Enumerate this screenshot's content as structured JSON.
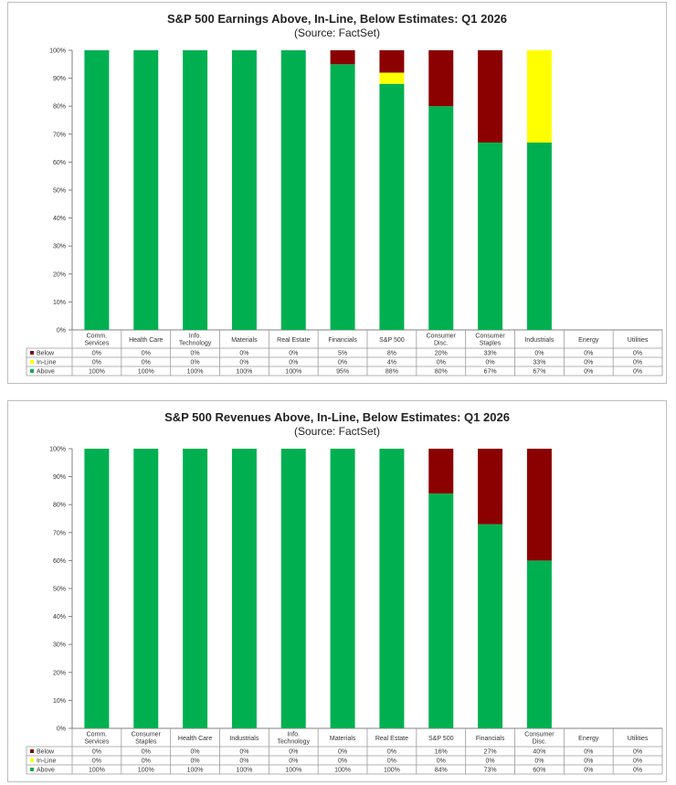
{
  "chart_data": [
    {
      "type": "bar",
      "stacked": true,
      "title": "S&P 500 Earnings Above, In-Line, Below Estimates: Q1 2026",
      "subtitle": "(Source: FactSet)",
      "categories": [
        [
          "Comm.",
          "Services"
        ],
        [
          "Health Care"
        ],
        [
          "Info.",
          "Technology"
        ],
        [
          "Materials"
        ],
        [
          "Real Estate"
        ],
        [
          "Financials"
        ],
        [
          "S&P 500"
        ],
        [
          "Consumer",
          "Disc."
        ],
        [
          "Consumer",
          "Staples"
        ],
        [
          "Industrials"
        ],
        [
          "Energy"
        ],
        [
          "Utilities"
        ]
      ],
      "series": [
        {
          "name": "Below",
          "color": "#8b0000",
          "values": [
            0,
            0,
            0,
            0,
            0,
            5,
            8,
            20,
            33,
            0,
            0,
            0
          ],
          "labels": [
            "0%",
            "0%",
            "0%",
            "0%",
            "0%",
            "5%",
            "8%",
            "20%",
            "33%",
            "0%",
            "0%",
            "0%"
          ]
        },
        {
          "name": "In-Line",
          "color": "#ffff00",
          "values": [
            0,
            0,
            0,
            0,
            0,
            0,
            4,
            0,
            0,
            33,
            0,
            0
          ],
          "labels": [
            "0%",
            "0%",
            "0%",
            "0%",
            "0%",
            "0%",
            "4%",
            "0%",
            "0%",
            "33%",
            "0%",
            "0%"
          ]
        },
        {
          "name": "Above",
          "color": "#00b050",
          "values": [
            100,
            100,
            100,
            100,
            100,
            95,
            88,
            80,
            67,
            67,
            0,
            0
          ],
          "labels": [
            "100%",
            "100%",
            "100%",
            "100%",
            "100%",
            "95%",
            "88%",
            "80%",
            "67%",
            "67%",
            "0%",
            "0%"
          ]
        }
      ],
      "ylim": [
        0,
        100
      ],
      "yticks": [
        "0%",
        "10%",
        "20%",
        "30%",
        "40%",
        "50%",
        "60%",
        "70%",
        "80%",
        "90%",
        "100%"
      ],
      "grid": false,
      "legend": "data-table"
    },
    {
      "type": "bar",
      "stacked": true,
      "title": "S&P 500 Revenues Above, In-Line, Below Estimates: Q1 2026",
      "subtitle": "(Source: FactSet)",
      "categories": [
        [
          "Comm.",
          "Services"
        ],
        [
          "Consumer",
          "Staples"
        ],
        [
          "Health Care"
        ],
        [
          "Industrials"
        ],
        [
          "Info.",
          "Technology"
        ],
        [
          "Materials"
        ],
        [
          "Real Estate"
        ],
        [
          "S&P 500"
        ],
        [
          "Financials"
        ],
        [
          "Consumer",
          "Disc."
        ],
        [
          "Energy"
        ],
        [
          "Utilities"
        ]
      ],
      "series": [
        {
          "name": "Below",
          "color": "#8b0000",
          "values": [
            0,
            0,
            0,
            0,
            0,
            0,
            0,
            16,
            27,
            40,
            0,
            0
          ],
          "labels": [
            "0%",
            "0%",
            "0%",
            "0%",
            "0%",
            "0%",
            "0%",
            "16%",
            "27%",
            "40%",
            "0%",
            "0%"
          ]
        },
        {
          "name": "In-Line",
          "color": "#ffff00",
          "values": [
            0,
            0,
            0,
            0,
            0,
            0,
            0,
            0,
            0,
            0,
            0,
            0
          ],
          "labels": [
            "0%",
            "0%",
            "0%",
            "0%",
            "0%",
            "0%",
            "0%",
            "0%",
            "0%",
            "0%",
            "0%",
            "0%"
          ]
        },
        {
          "name": "Above",
          "color": "#00b050",
          "values": [
            100,
            100,
            100,
            100,
            100,
            100,
            100,
            84,
            73,
            60,
            0,
            0
          ],
          "labels": [
            "100%",
            "100%",
            "100%",
            "100%",
            "100%",
            "100%",
            "100%",
            "84%",
            "73%",
            "60%",
            "0%",
            "0%"
          ]
        }
      ],
      "ylim": [
        0,
        100
      ],
      "yticks": [
        "0%",
        "10%",
        "20%",
        "30%",
        "40%",
        "50%",
        "60%",
        "70%",
        "80%",
        "90%",
        "100%"
      ],
      "grid": false,
      "legend": "data-table"
    }
  ]
}
